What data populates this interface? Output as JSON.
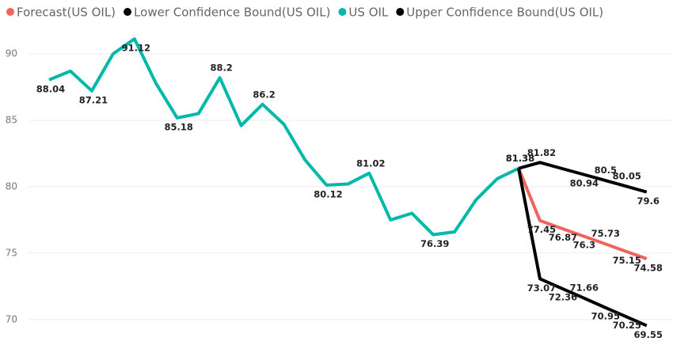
{
  "chart_data": {
    "type": "line",
    "categories": [
      null,
      null,
      null,
      null,
      null,
      null,
      null,
      null,
      null,
      null,
      null,
      null,
      null,
      null,
      null,
      null,
      null,
      null,
      null,
      null,
      null,
      null,
      null,
      null,
      null,
      null,
      null,
      null,
      null
    ],
    "ylim": [
      68.8,
      92
    ],
    "yticks": [
      70,
      75,
      80,
      85,
      90
    ],
    "grid": true,
    "legend": "top-left",
    "series": [
      {
        "name": "Forecast(US OIL)",
        "color": "#F0645F",
        "values": [
          null,
          null,
          null,
          null,
          null,
          null,
          null,
          null,
          null,
          null,
          null,
          null,
          null,
          null,
          null,
          null,
          null,
          null,
          null,
          null,
          null,
          null,
          81.38,
          77.45,
          76.87,
          76.3,
          75.73,
          75.15,
          74.58
        ],
        "value_labels": [
          null,
          null,
          null,
          null,
          null,
          null,
          null,
          null,
          null,
          null,
          null,
          null,
          null,
          null,
          null,
          null,
          null,
          null,
          null,
          null,
          null,
          null,
          "81.38",
          "77.45",
          "76.87",
          "76.3",
          "75.73",
          "75.15",
          "74.58"
        ]
      },
      {
        "name": "Lower Confidence Bound(US OIL)",
        "color": "#000000",
        "values": [
          null,
          null,
          null,
          null,
          null,
          null,
          null,
          null,
          null,
          null,
          null,
          null,
          null,
          null,
          null,
          null,
          null,
          null,
          null,
          null,
          null,
          null,
          81.38,
          73.07,
          72.36,
          71.66,
          70.95,
          70.25,
          69.55
        ],
        "value_labels": [
          null,
          null,
          null,
          null,
          null,
          null,
          null,
          null,
          null,
          null,
          null,
          null,
          null,
          null,
          null,
          null,
          null,
          null,
          null,
          null,
          null,
          null,
          null,
          "73.07",
          "72.36",
          "71.66",
          "70.95",
          "70.25",
          "69.55"
        ]
      },
      {
        "name": "US OIL",
        "color": "#01B8AA",
        "values": [
          88.04,
          88.7,
          87.21,
          90.0,
          91.12,
          87.8,
          85.18,
          85.5,
          88.2,
          84.6,
          86.2,
          84.7,
          82.0,
          80.12,
          80.2,
          81.02,
          77.5,
          78.0,
          76.39,
          76.6,
          79.0,
          80.6,
          81.38,
          null,
          null,
          null,
          null,
          null,
          null
        ],
        "value_labels": [
          "88.04",
          null,
          "87.21",
          null,
          "91.12",
          null,
          "85.18",
          null,
          "88.2",
          null,
          "86.2",
          null,
          null,
          "80.12",
          null,
          "81.02",
          null,
          null,
          "76.39",
          null,
          null,
          null,
          null,
          null,
          null,
          null,
          null,
          null,
          null
        ]
      },
      {
        "name": "Upper Confidence Bound(US OIL)",
        "color": "#000000",
        "values": [
          null,
          null,
          null,
          null,
          null,
          null,
          null,
          null,
          null,
          null,
          null,
          null,
          null,
          null,
          null,
          null,
          null,
          null,
          null,
          null,
          null,
          null,
          81.38,
          81.82,
          81.38,
          80.94,
          80.5,
          80.05,
          79.6
        ],
        "value_labels": [
          null,
          null,
          null,
          null,
          null,
          null,
          null,
          null,
          null,
          null,
          null,
          null,
          null,
          null,
          null,
          null,
          null,
          null,
          null,
          null,
          null,
          null,
          "81.38",
          "81.82",
          null,
          "80.94",
          "80.5",
          "80.05",
          "79.6"
        ]
      }
    ]
  }
}
